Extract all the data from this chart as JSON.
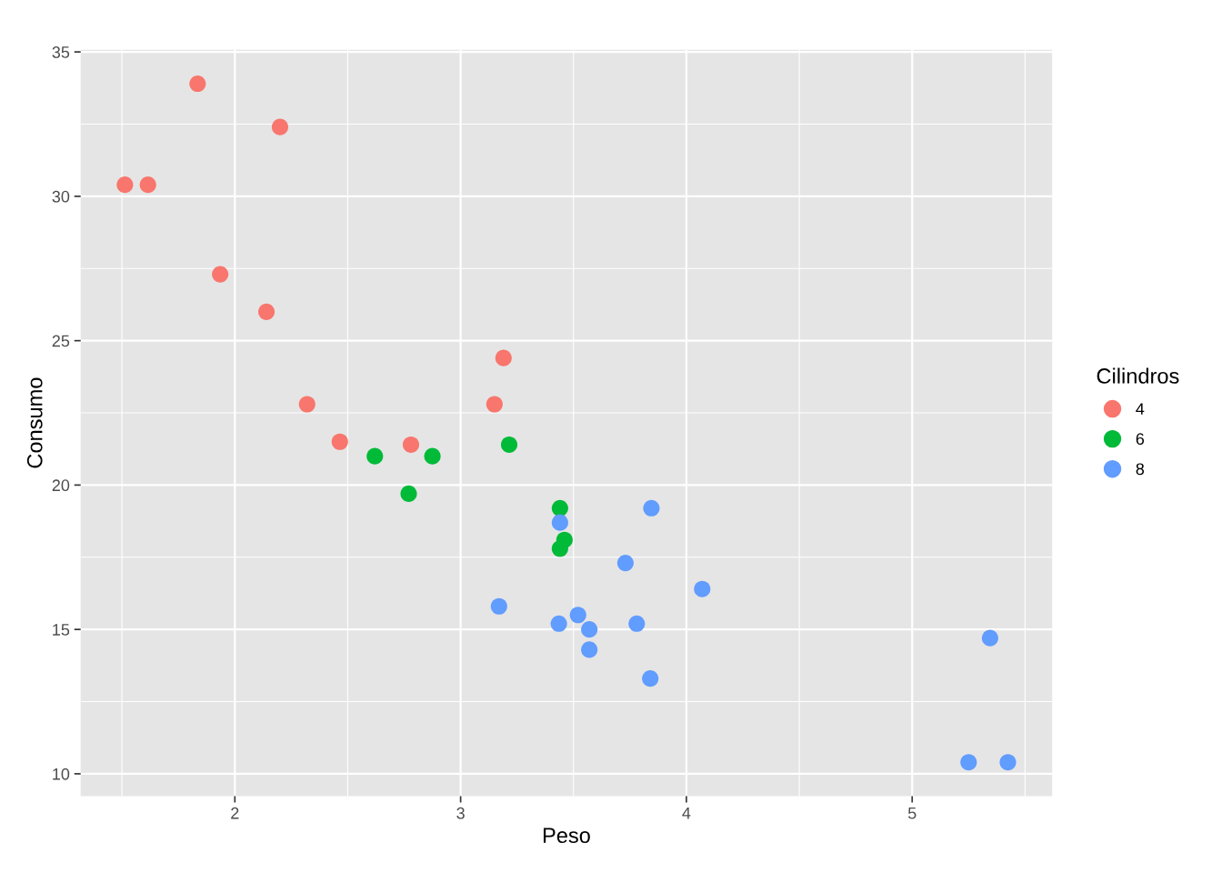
{
  "chart_data": {
    "type": "scatter",
    "xlabel": "Peso",
    "ylabel": "Consumo",
    "legend_title": "Cilindros",
    "legend": "right",
    "grid": true,
    "marker": "circle",
    "xlim": [
      1.317,
      5.62
    ],
    "ylim": [
      9.225,
      35.075
    ],
    "xticks": [
      2,
      3,
      4,
      5
    ],
    "yticks": [
      10,
      15,
      20,
      25,
      30,
      35
    ],
    "series": [
      {
        "name": "4",
        "color": "#f8766d",
        "x": [
          2.32,
          3.19,
          3.15,
          2.2,
          1.615,
          1.835,
          2.465,
          1.935,
          2.14,
          1.513,
          2.78
        ],
        "values": [
          22.8,
          24.4,
          22.8,
          32.4,
          30.4,
          33.9,
          21.5,
          27.3,
          26.0,
          30.4,
          21.4
        ]
      },
      {
        "name": "6",
        "color": "#00ba38",
        "x": [
          2.62,
          2.875,
          3.215,
          3.46,
          3.44,
          3.44,
          2.77
        ],
        "values": [
          21.0,
          21.0,
          21.4,
          18.1,
          19.2,
          17.8,
          19.7
        ]
      },
      {
        "name": "8",
        "color": "#619cff",
        "x": [
          3.44,
          3.57,
          4.07,
          3.73,
          3.78,
          5.25,
          5.424,
          5.345,
          3.52,
          3.435,
          3.84,
          3.845,
          3.17,
          3.57
        ],
        "values": [
          18.7,
          14.3,
          16.4,
          17.3,
          15.2,
          10.4,
          10.4,
          14.7,
          15.5,
          15.2,
          13.3,
          19.2,
          15.8,
          15.0
        ]
      }
    ]
  }
}
